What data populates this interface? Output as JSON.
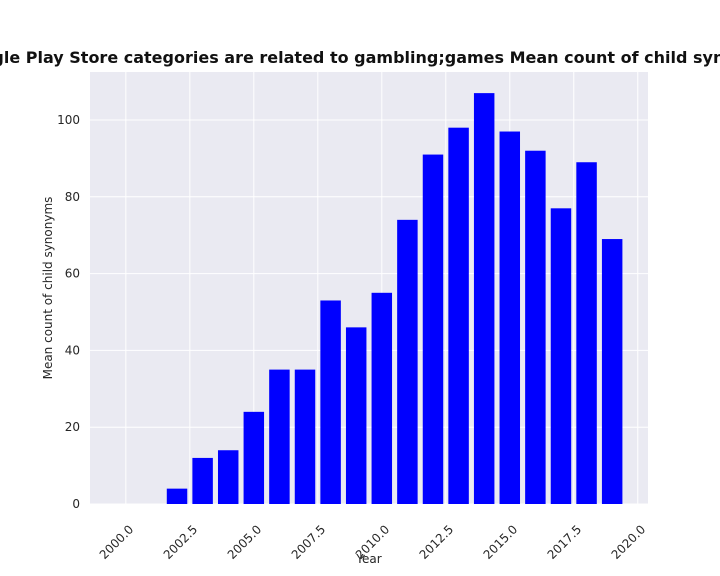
{
  "chart_data": {
    "type": "bar",
    "title": "Percentage of apps whose Google Play Store categories are related to gambling;games Mean count of child synonyms in privacy policies by year",
    "xlabel": "Year",
    "ylabel": "Mean count of child synonyms",
    "x": [
      2000,
      2001,
      2002,
      2003,
      2004,
      2005,
      2006,
      2007,
      2008,
      2009,
      2010,
      2011,
      2012,
      2013,
      2014,
      2015,
      2016,
      2017,
      2018,
      2019
    ],
    "values": [
      0,
      0,
      4,
      12,
      14,
      24,
      35,
      35,
      53,
      46,
      55,
      74,
      91,
      98,
      107,
      97,
      92,
      77,
      89,
      69
    ],
    "xlim": [
      1998.6,
      2020.4
    ],
    "ylim": [
      0,
      112.5
    ],
    "xticks": [
      2000,
      2002.5,
      2005,
      2007.5,
      2010,
      2012.5,
      2015,
      2017.5,
      2020
    ],
    "xtick_labels": [
      "2000.0",
      "2002.5",
      "2005.0",
      "2007.5",
      "2010.0",
      "2012.5",
      "2015.0",
      "2017.5",
      "2020.0"
    ],
    "yticks": [
      0,
      20,
      40,
      60,
      80,
      100
    ],
    "ytick_labels": [
      "0",
      "20",
      "40",
      "60",
      "80",
      "100"
    ],
    "bar_color": "#0000ff",
    "background_color": "#eaeaf2",
    "grid": true
  }
}
